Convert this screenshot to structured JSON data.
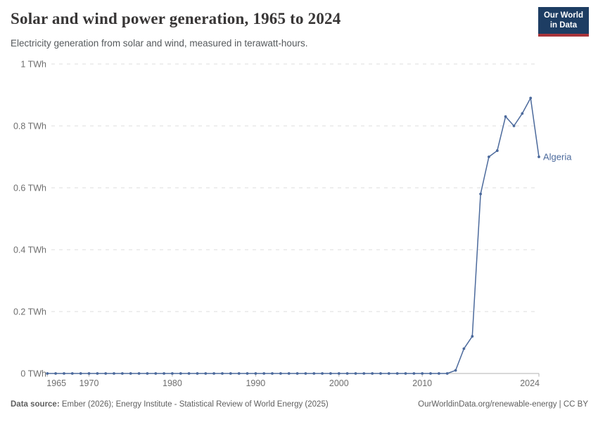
{
  "header": {
    "title": "Solar and wind power generation, 1965 to 2024",
    "subtitle": "Electricity generation from solar and wind, measured in terawatt-hours.",
    "logo": {
      "line1": "Our World",
      "line2": "in Data"
    }
  },
  "footer": {
    "source_label": "Data source:",
    "source_text": " Ember (2026); Energy Institute - Statistical Review of World Energy (2025)",
    "credit": "OurWorldinData.org/renewable-energy | CC BY"
  },
  "colors": {
    "line": "#4c6a9c",
    "grid": "#dddddd",
    "axis": "#b0b0b0",
    "tick_label": "#6e6e6e",
    "logo_bg": "#1d3d63",
    "logo_red": "#a8343a"
  },
  "chart_data": {
    "type": "line",
    "title": "Solar and wind power generation, 1965 to 2024",
    "unit": "TWh",
    "entity_label": "Algeria",
    "x": [
      1965,
      1966,
      1967,
      1968,
      1969,
      1970,
      1971,
      1972,
      1973,
      1974,
      1975,
      1976,
      1977,
      1978,
      1979,
      1980,
      1981,
      1982,
      1983,
      1984,
      1985,
      1986,
      1987,
      1988,
      1989,
      1990,
      1991,
      1992,
      1993,
      1994,
      1995,
      1996,
      1997,
      1998,
      1999,
      2000,
      2001,
      2002,
      2003,
      2004,
      2005,
      2006,
      2007,
      2008,
      2009,
      2010,
      2011,
      2012,
      2013,
      2014,
      2015,
      2016,
      2017,
      2018,
      2019,
      2020,
      2021,
      2022,
      2023,
      2024
    ],
    "series": [
      {
        "name": "Algeria",
        "values": [
          0,
          0,
          0,
          0,
          0,
          0,
          0,
          0,
          0,
          0,
          0,
          0,
          0,
          0,
          0,
          0,
          0,
          0,
          0,
          0,
          0,
          0,
          0,
          0,
          0,
          0,
          0,
          0,
          0,
          0,
          0,
          0,
          0,
          0,
          0,
          0,
          0,
          0,
          0,
          0,
          0,
          0,
          0,
          0,
          0,
          0,
          0,
          0,
          0,
          0.01,
          0.08,
          0.12,
          0.58,
          0.7,
          0.72,
          0.83,
          0.8,
          0.84,
          0.89,
          0.7
        ]
      }
    ],
    "xlabel": "",
    "ylabel": "",
    "xlim": [
      1965,
      2024
    ],
    "ylim": [
      0,
      1
    ],
    "x_ticks": [
      {
        "value": 1965,
        "label": "1965"
      },
      {
        "value": 1970,
        "label": "1970"
      },
      {
        "value": 1980,
        "label": "1980"
      },
      {
        "value": 1990,
        "label": "1990"
      },
      {
        "value": 2000,
        "label": "2000"
      },
      {
        "value": 2010,
        "label": "2010"
      },
      {
        "value": 2024,
        "label": "2024"
      }
    ],
    "y_ticks": [
      {
        "value": 0,
        "label": "0 TWh"
      },
      {
        "value": 0.2,
        "label": "0.2 TWh"
      },
      {
        "value": 0.4,
        "label": "0.4 TWh"
      },
      {
        "value": 0.6,
        "label": "0.6 TWh"
      },
      {
        "value": 0.8,
        "label": "0.8 TWh"
      },
      {
        "value": 1,
        "label": "1 TWh"
      }
    ],
    "grid": true,
    "legend_position": "line-end-label"
  }
}
